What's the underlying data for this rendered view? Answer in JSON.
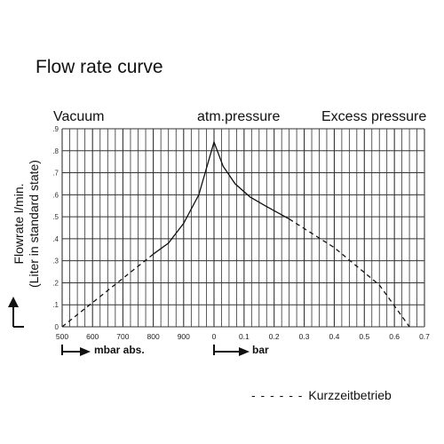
{
  "title": "Flow rate curve",
  "regions": {
    "vacuum": "Vacuum",
    "atm": "atm.pressure",
    "excess": "Excess pressure"
  },
  "ylabel_line1": "Flowrate l/min.",
  "ylabel_line2": "(Liter in standard state)",
  "xlabel_vacuum": "mbar abs.",
  "xlabel_pressure": "bar",
  "legend_dashes": "- - - - - -",
  "legend_label": "Kurzzeitbetrieb",
  "chart_data": {
    "type": "line",
    "title": "Flow rate curve",
    "ylabel": "Flowrate l/min. (Liter in standard state)",
    "ylim": [
      0,
      0.9
    ],
    "y_ticks": [
      ".9",
      ".8",
      ".7",
      ".6",
      ".5",
      ".4",
      ".3",
      ".2",
      ".1",
      "0"
    ],
    "grid": true,
    "x_ticks": [
      "500",
      "600",
      "700",
      "800",
      "900",
      "0",
      "0.1",
      "0.2",
      "0.3",
      "0.4",
      "0.5",
      "0.6",
      "0.7"
    ],
    "x_note": "left half: absolute pressure in mbar abs. (500-1000); right half: excess pressure in bar (0-0.7)",
    "series": [
      {
        "name": "Kurzzeitbetrieb",
        "style": "dashed",
        "x": [
          "500 mbar",
          "800 mbar"
        ],
        "y": [
          0.0,
          0.33
        ]
      },
      {
        "style": "solid",
        "x": [
          "800 mbar",
          "850 mbar",
          "900 mbar",
          "950 mbar",
          "0 bar",
          "0.03 bar",
          "0.07 bar",
          "0.12 bar",
          "0.17 bar",
          "0.25 bar"
        ],
        "y": [
          0.33,
          0.38,
          0.47,
          0.6,
          0.84,
          0.73,
          0.65,
          0.59,
          0.55,
          0.49
        ]
      },
      {
        "name": "Kurzzeitbetrieb",
        "style": "dashed",
        "x": [
          "0.25 bar",
          "0.40 bar",
          "0.55 bar",
          "0.65 bar"
        ],
        "y": [
          0.49,
          0.36,
          0.19,
          0.0
        ]
      }
    ]
  }
}
